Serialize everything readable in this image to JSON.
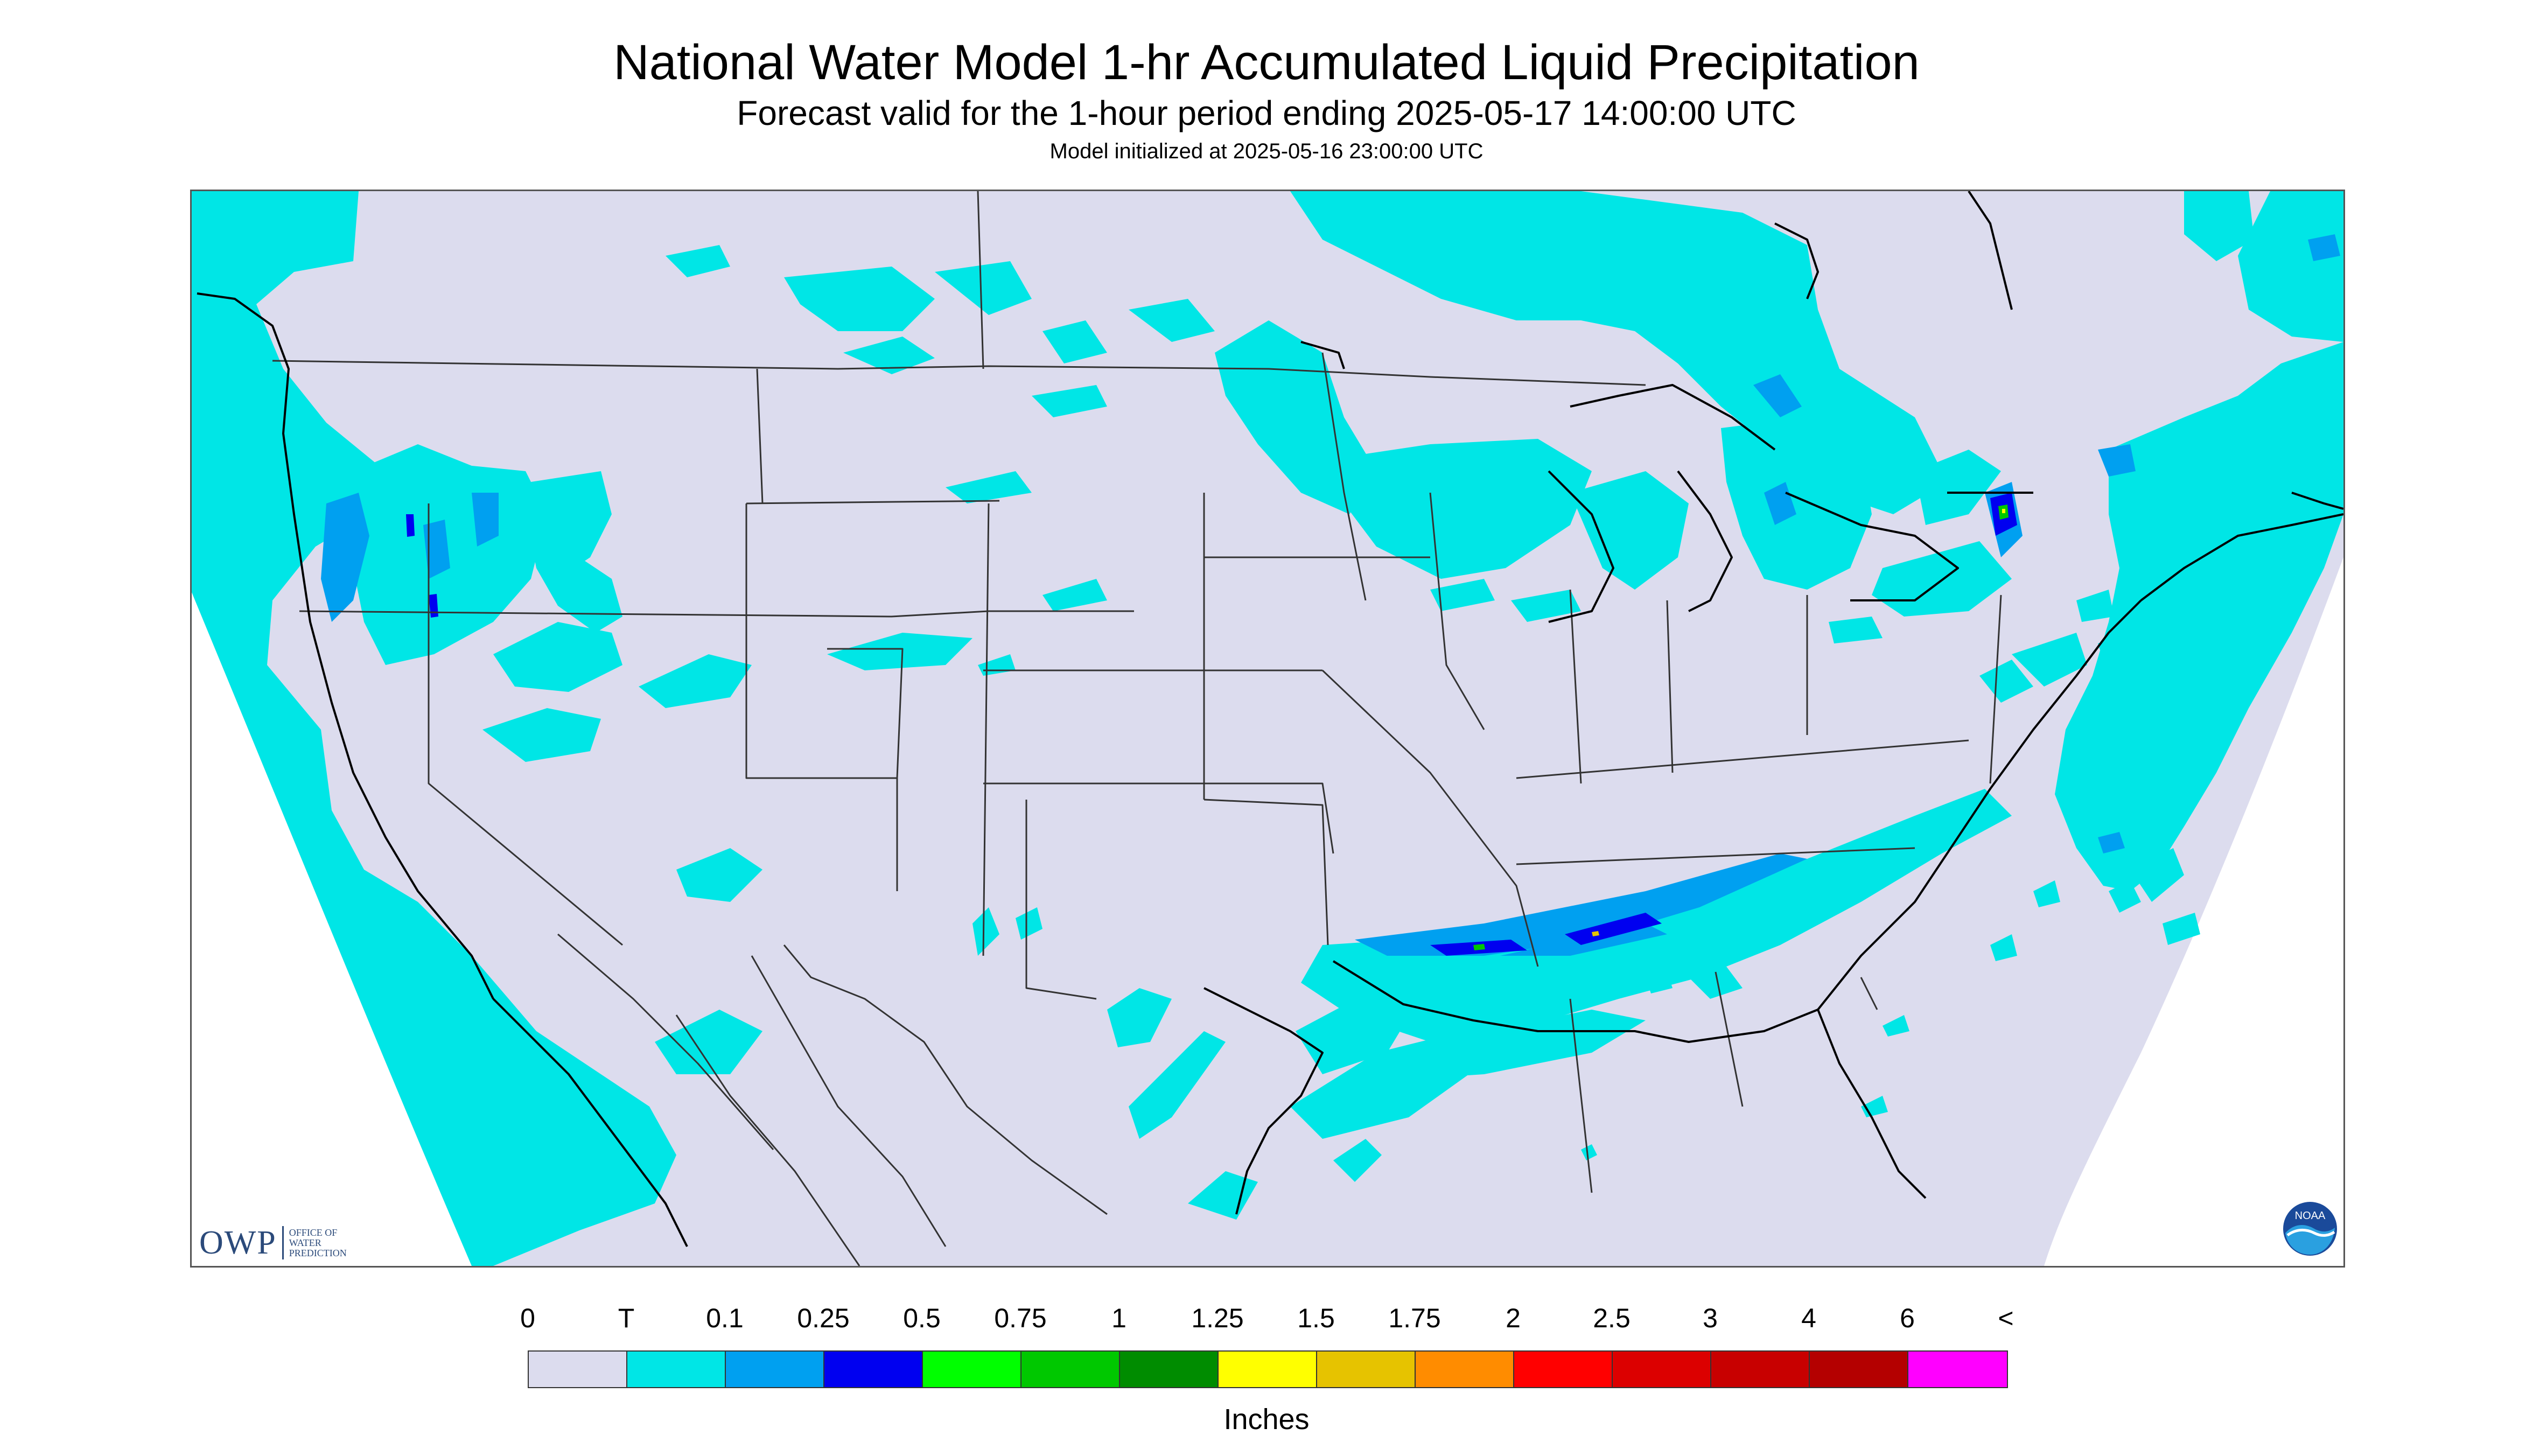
{
  "header": {
    "title": "National Water Model 1-hr Accumulated Liquid Precipitation",
    "subtitle": "Forecast valid for the 1-hour period ending 2025-05-17 14:00:00 UTC",
    "init_line": "Model initialized at 2025-05-16 23:00:00 UTC"
  },
  "logos": {
    "owp_letters": "OWP",
    "owp_lines": [
      "OFFICE OF",
      "WATER",
      "PREDICTION"
    ],
    "noaa_text": "NOAA"
  },
  "legend": {
    "units": "Inches",
    "tick_labels": [
      "0",
      "T",
      "0.1",
      "0.25",
      "0.5",
      "0.75",
      "1",
      "1.25",
      "1.5",
      "1.75",
      "2",
      "2.5",
      "3",
      "4",
      "6",
      "<"
    ],
    "colors": [
      "#dcdcee",
      "#00e6e6",
      "#00a0f0",
      "#0000f0",
      "#00ff00",
      "#00c800",
      "#008c00",
      "#ffff00",
      "#e6c300",
      "#ff8c00",
      "#ff0000",
      "#dc0000",
      "#c80000",
      "#b40000",
      "#ff00ff",
      "#9955cc"
    ]
  },
  "map": {
    "background_color": "#dcdcee",
    "outside_domain_color": "#ffffff",
    "border_color": "#333333"
  }
}
